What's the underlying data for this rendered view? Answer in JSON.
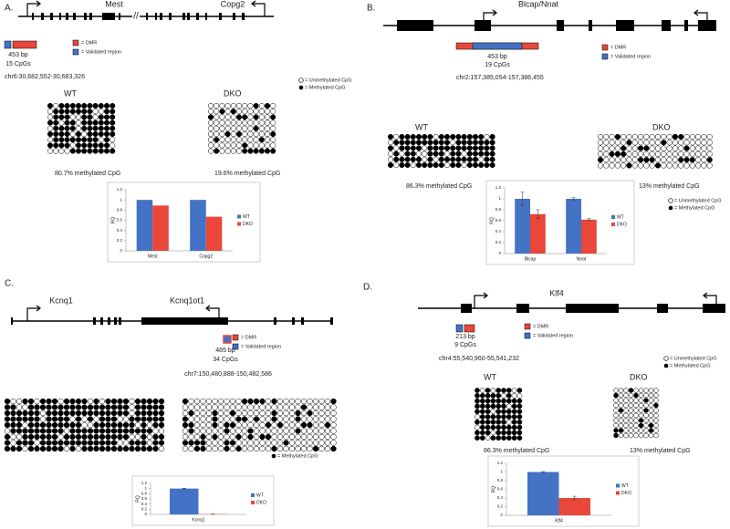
{
  "panels": [
    {
      "letter": "A.",
      "genes": [
        "Mest",
        "Copg2"
      ],
      "size": "453 bp",
      "cpgs": "15 CpGs",
      "coords": "chr6:30,682,552-30,683,326",
      "dmr": "= DMR",
      "validated": "= Validated region",
      "unmeth": "= Unmethylated CpG",
      "meth": "= Methylated CpG",
      "wt": "WT",
      "dko": "DKO",
      "wt_pct": "80.7% methylated CpG",
      "dko_pct": "19.6% methylated CpG",
      "chart": {
        "type": "bar",
        "categories": [
          "Mest",
          "Copg2"
        ],
        "ylabel": "RQ",
        "ylim": [
          0,
          1.2
        ],
        "yticks": [
          0,
          0.2,
          0.4,
          0.6,
          0.8,
          1,
          1.2
        ],
        "series": [
          {
            "name": "WT",
            "color": "#4472c4",
            "values": [
              1,
              1
            ]
          },
          {
            "name": "DKO",
            "color": "#e8473a",
            "values": [
              0.89,
              0.67
            ]
          }
        ]
      }
    },
    {
      "letter": "B.",
      "genes": [
        "Blcap/Nnat"
      ],
      "size": "453 bp",
      "cpgs": "19 CpGs",
      "coords": "chr2:157,385,054-157,386,455",
      "dmr": "= DMR",
      "validated": "= Validated region",
      "unmeth": "= Unmethylated CpG",
      "meth": "= Methylated CpG",
      "wt": "WT",
      "dko": "DKO",
      "wt_pct": "86.3% methylated CpG",
      "dko_pct": "13% methylated CpG",
      "chart": {
        "type": "bar",
        "categories": [
          "Blcap",
          "Nnat"
        ],
        "ylabel": "RQ",
        "ylim": [
          0,
          1.2
        ],
        "yticks": [
          0,
          0.2,
          0.4,
          0.6,
          0.8,
          1,
          1.2
        ],
        "series": [
          {
            "name": "WT",
            "color": "#4472c4",
            "values": [
              1,
              1
            ],
            "errors": [
              0.12,
              0.02
            ]
          },
          {
            "name": "DKO",
            "color": "#e8473a",
            "values": [
              0.72,
              0.62
            ],
            "errors": [
              0.08,
              0.02
            ]
          }
        ]
      }
    },
    {
      "letter": "C.",
      "genes": [
        "Kcnq1",
        "Kcnq1ot1"
      ],
      "size": "485 bp",
      "cpgs": "34 CpGs",
      "coords": "chr7:150,480,888-150,482,586",
      "dmr": "= DMR",
      "validated": "= Validated region",
      "unmeth": "= Unmethylated CpG",
      "meth": "= Methylated CpG",
      "chart": {
        "type": "bar",
        "categories": [
          "Kcnq1"
        ],
        "ylabel": "RQ",
        "ylim": [
          0,
          1.2
        ],
        "yticks": [
          0,
          0.2,
          0.4,
          0.6,
          0.8,
          1,
          1.2
        ],
        "series": [
          {
            "name": "WT",
            "color": "#4472c4",
            "values": [
              1
            ],
            "errors": [
              0.01
            ]
          },
          {
            "name": "DKO",
            "color": "#e8473a",
            "values": [
              0.01
            ],
            "errors": [
              0.005
            ]
          }
        ]
      }
    },
    {
      "letter": "D.",
      "genes": [
        "Klf4"
      ],
      "size": "213 bp",
      "cpgs": "9 CpGs",
      "coords": "chr4:55,540,960-55,541,232",
      "dmr": "= DMR",
      "validated": "= Validated region",
      "unmeth": "= Unmethylated CpG",
      "meth": "= Methylated CpG",
      "wt": "WT",
      "dko": "DKO",
      "wt_pct": "86.3% methylated CpG",
      "dko_pct": "13% methylated CpG",
      "chart": {
        "type": "bar",
        "categories": [
          "Klf4"
        ],
        "ylabel": "RQ",
        "ylim": [
          0,
          1.2
        ],
        "yticks": [
          0,
          0.2,
          0.4,
          0.6,
          0.8,
          1,
          1.2
        ],
        "series": [
          {
            "name": "WT",
            "color": "#4472c4",
            "values": [
              1
            ],
            "errors": [
              0.01
            ]
          },
          {
            "name": "DKO",
            "color": "#e8473a",
            "values": [
              0.4
            ],
            "errors": [
              0.04
            ]
          }
        ]
      }
    }
  ]
}
